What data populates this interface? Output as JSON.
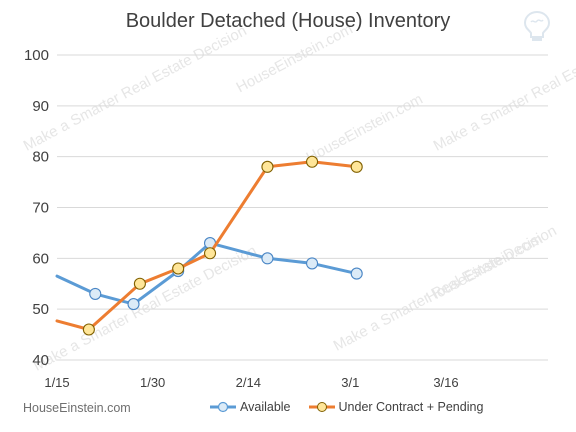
{
  "chart_data": {
    "type": "line",
    "title": "Boulder Detached (House) Inventory",
    "xlabel": "",
    "ylabel": "",
    "ylim": [
      40,
      100
    ],
    "yticks": [
      40,
      50,
      60,
      70,
      80,
      90,
      100
    ],
    "xlim": [
      "2016-01-15",
      "2016-04-01"
    ],
    "xticks": [
      {
        "label": "1/15",
        "date": "2016-01-15"
      },
      {
        "label": "1/30",
        "date": "2016-01-30"
      },
      {
        "label": "2/14",
        "date": "2016-02-14"
      },
      {
        "label": "3/1",
        "date": "2016-03-01"
      },
      {
        "label": "3/16",
        "date": "2016-03-16"
      }
    ],
    "grid": "horizontal",
    "legend_position": "bottom",
    "series": [
      {
        "name": "Available",
        "color": "#5b9bd5",
        "marker_fill": "#dcebf7",
        "points": [
          {
            "date": "2016-01-15",
            "value": 56.5,
            "marker": false
          },
          {
            "date": "2016-01-21",
            "value": 53
          },
          {
            "date": "2016-01-27",
            "value": 51
          },
          {
            "date": "2016-02-03",
            "value": 57.5
          },
          {
            "date": "2016-02-08",
            "value": 63
          },
          {
            "date": "2016-02-17",
            "value": 60
          },
          {
            "date": "2016-02-24",
            "value": 59
          },
          {
            "date": "2016-03-02",
            "value": 57
          }
        ]
      },
      {
        "name": "Under Contract + Pending",
        "color": "#ed7d31",
        "marker_fill": "#ffe699",
        "points": [
          {
            "date": "2016-01-15",
            "value": 47.7,
            "marker": false
          },
          {
            "date": "2016-01-20",
            "value": 46
          },
          {
            "date": "2016-01-28",
            "value": 55
          },
          {
            "date": "2016-02-03",
            "value": 58
          },
          {
            "date": "2016-02-08",
            "value": 61
          },
          {
            "date": "2016-02-17",
            "value": 78
          },
          {
            "date": "2016-02-24",
            "value": 79
          },
          {
            "date": "2016-03-02",
            "value": 78
          }
        ]
      }
    ]
  },
  "footer": {
    "site": "HouseEinstein.com"
  },
  "watermark": {
    "text_tagline": "Make a Smarter Real Estate Decision",
    "text_site": "HouseEinstein.com",
    "color": "#e6e6e6"
  },
  "colors": {
    "gridline": "#d9d9d9",
    "text": "#404040"
  },
  "logo": {
    "icon": "lightbulb-brain-icon"
  }
}
